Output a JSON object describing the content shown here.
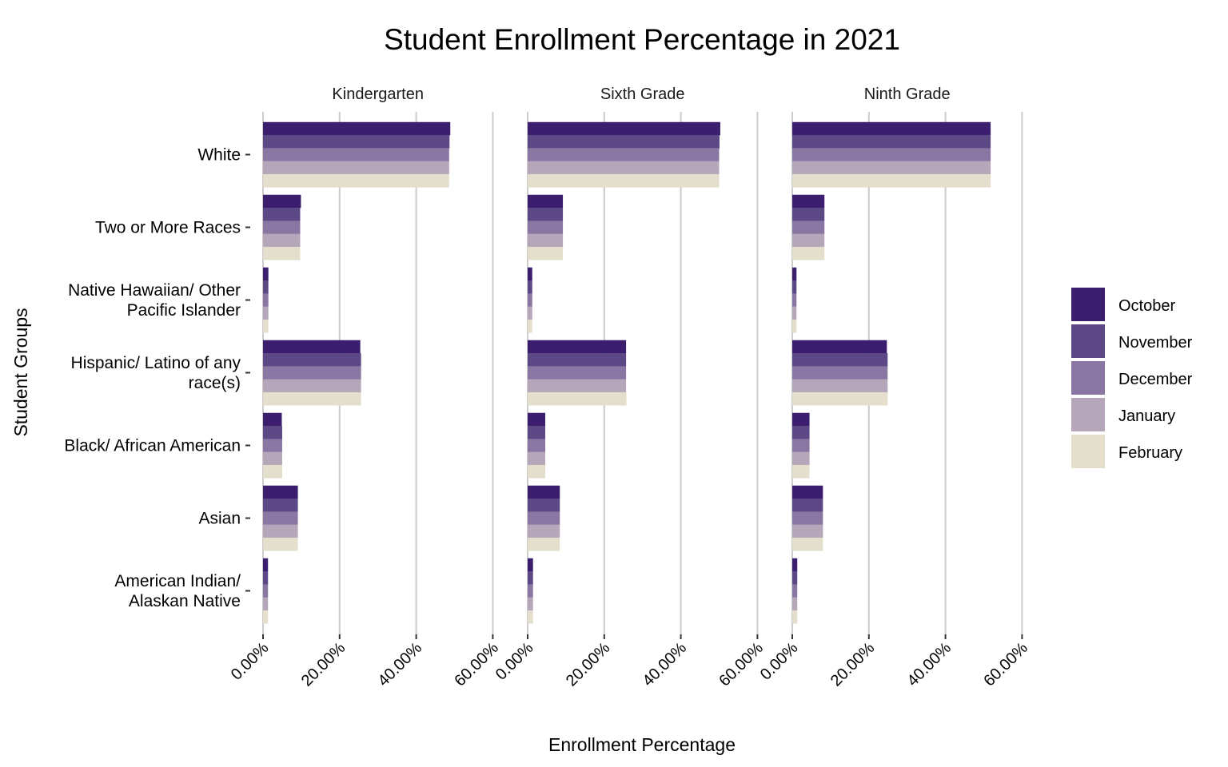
{
  "chart_data": {
    "type": "bar",
    "orientation": "horizontal",
    "title": "Student Enrollment Percentage in 2021",
    "xlabel": "Enrollment Percentage",
    "ylabel": "Student Groups",
    "xlim": [
      0,
      60
    ],
    "x_ticks": [
      "0.00%",
      "20.00%",
      "40.00%",
      "60.00%"
    ],
    "x_tick_values": [
      0,
      20,
      40,
      60
    ],
    "grid": "vertical major gridlines",
    "legend_position": "right",
    "categories": [
      [
        "White"
      ],
      [
        "Two or More Races"
      ],
      [
        "Native Hawaiian/ Other",
        "Pacific Islander"
      ],
      [
        "Hispanic/ Latino of any",
        "race(s)"
      ],
      [
        "Black/ African American"
      ],
      [
        "Asian"
      ],
      [
        "American Indian/",
        "Alaskan Native"
      ]
    ],
    "series": [
      {
        "name": "October",
        "color": "#3b1f6e"
      },
      {
        "name": "November",
        "color": "#5d4886"
      },
      {
        "name": "December",
        "color": "#8a76a3"
      },
      {
        "name": "January",
        "color": "#b5a7b9"
      },
      {
        "name": "February",
        "color": "#e4dfcc"
      }
    ],
    "panels": [
      {
        "name": "Kindergarten",
        "values": [
          [
            48.9,
            48.7,
            48.6,
            48.6,
            48.6
          ],
          [
            9.9,
            9.7,
            9.7,
            9.7,
            9.7
          ],
          [
            1.4,
            1.4,
            1.4,
            1.4,
            1.4
          ],
          [
            25.4,
            25.6,
            25.6,
            25.6,
            25.6
          ],
          [
            4.9,
            5.0,
            5.0,
            5.0,
            5.0
          ],
          [
            9.1,
            9.1,
            9.1,
            9.1,
            9.1
          ],
          [
            1.3,
            1.3,
            1.3,
            1.3,
            1.3
          ]
        ]
      },
      {
        "name": "Sixth Grade",
        "values": [
          [
            50.3,
            50.1,
            50.0,
            50.0,
            50.0
          ],
          [
            9.2,
            9.2,
            9.2,
            9.2,
            9.2
          ],
          [
            1.2,
            1.2,
            1.2,
            1.2,
            1.2
          ],
          [
            25.7,
            25.7,
            25.7,
            25.7,
            25.8
          ],
          [
            4.6,
            4.6,
            4.6,
            4.6,
            4.6
          ],
          [
            8.4,
            8.4,
            8.4,
            8.4,
            8.4
          ],
          [
            1.4,
            1.4,
            1.4,
            1.4,
            1.4
          ]
        ]
      },
      {
        "name": "Ninth Grade",
        "values": [
          [
            51.8,
            51.8,
            51.8,
            51.8,
            51.8
          ],
          [
            8.4,
            8.4,
            8.4,
            8.4,
            8.4
          ],
          [
            1.1,
            1.1,
            1.1,
            1.1,
            1.1
          ],
          [
            24.7,
            24.9,
            24.9,
            24.9,
            24.9
          ],
          [
            4.5,
            4.5,
            4.5,
            4.5,
            4.5
          ],
          [
            8.0,
            8.0,
            8.0,
            8.0,
            8.0
          ],
          [
            1.3,
            1.3,
            1.3,
            1.3,
            1.3
          ]
        ]
      }
    ]
  }
}
